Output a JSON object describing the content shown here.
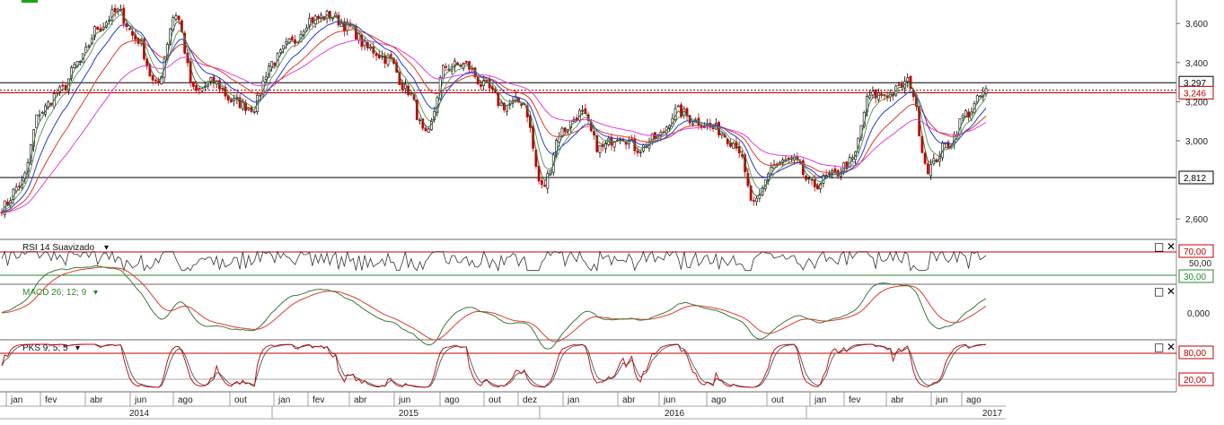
{
  "colors": {
    "bull": "#000000",
    "bear": "#c00000",
    "ema_fast": "#2f6b2f",
    "ema_slow": "#5e8c5e",
    "ma_blue": "#1f3fd0",
    "ma_red": "#e03a2a",
    "ma_magenta": "#e040e0",
    "rsi": "#333333",
    "level_red": "#c00000",
    "level_green": "#2a8a2a",
    "macd": "#3b7a3b",
    "signal": "#e03a2a",
    "pks_k": "#c00000",
    "pks_d": "#555555",
    "separator": "#6a6a6a"
  },
  "price": {
    "y_ticks": [
      "3,600",
      "3,400",
      "3,200",
      "3,000",
      "2,600"
    ],
    "levels": [
      {
        "value": 3297,
        "label": "3,297"
      },
      {
        "value": 3246,
        "label": "3,246"
      },
      {
        "value": 2812,
        "label": "2,812"
      }
    ],
    "dotted_value": 3252
  },
  "panels": {
    "rsi": {
      "label": "RSI 14 Suavizado",
      "levels": [
        "70,00",
        "50,00",
        "30,00"
      ]
    },
    "macd": {
      "label": "MACD 26; 12; 9",
      "zero": "0,000"
    },
    "pks": {
      "label": "PKS 9; 5; 5",
      "levels": [
        "80,00",
        "20,00"
      ]
    }
  },
  "window_icons": {
    "maximize": "maximize-icon",
    "close": "close-icon"
  },
  "time_axis": {
    "months": [
      "jan",
      "fev",
      "abr",
      "jun",
      "ago",
      "out",
      "jan",
      "fev",
      "abr",
      "jun",
      "ago",
      "out",
      "dez",
      "jan",
      "abr",
      "jun",
      "ago",
      "out",
      "jan",
      "fev",
      "abr",
      "jun",
      "ago"
    ],
    "years": [
      "2014",
      "2015",
      "2016",
      "2017"
    ]
  },
  "chart_data": {
    "type": "candlestick",
    "x_range": [
      "2014-01",
      "2017-08"
    ],
    "ylim": [
      2500,
      3720
    ],
    "series_shape": [
      [
        0,
        2660
      ],
      [
        1,
        2780
      ],
      [
        2,
        3150
      ],
      [
        3,
        3250
      ],
      [
        4,
        3400
      ],
      [
        5,
        3580
      ],
      [
        6,
        3660
      ],
      [
        7,
        3520
      ],
      [
        8,
        3280
      ],
      [
        9,
        3650
      ],
      [
        10,
        3250
      ],
      [
        11,
        3300
      ],
      [
        12,
        3200
      ],
      [
        13,
        3170
      ],
      [
        14,
        3400
      ],
      [
        15,
        3500
      ],
      [
        16,
        3620
      ],
      [
        17,
        3640
      ],
      [
        18,
        3580
      ],
      [
        19,
        3470
      ],
      [
        20,
        3420
      ],
      [
        21,
        3260
      ],
      [
        22,
        3020
      ],
      [
        23,
        3380
      ],
      [
        24,
        3390
      ],
      [
        25,
        3280
      ],
      [
        26,
        3180
      ],
      [
        27,
        3200
      ],
      [
        28,
        2760
      ],
      [
        29,
        3050
      ],
      [
        30,
        3140
      ],
      [
        31,
        2960
      ],
      [
        32,
        3030
      ],
      [
        33,
        2960
      ],
      [
        34,
        3020
      ],
      [
        35,
        3150
      ],
      [
        36,
        3100
      ],
      [
        37,
        3060
      ],
      [
        38,
        2990
      ],
      [
        39,
        2670
      ],
      [
        40,
        2880
      ],
      [
        41,
        2900
      ],
      [
        42,
        2770
      ],
      [
        43,
        2820
      ],
      [
        44,
        2890
      ],
      [
        45,
        3230
      ],
      [
        46,
        3240
      ],
      [
        47,
        3300
      ],
      [
        48,
        2860
      ],
      [
        49,
        2980
      ],
      [
        50,
        3140
      ],
      [
        51,
        3250
      ]
    ],
    "x_step": "~3.5 weeks per point"
  }
}
